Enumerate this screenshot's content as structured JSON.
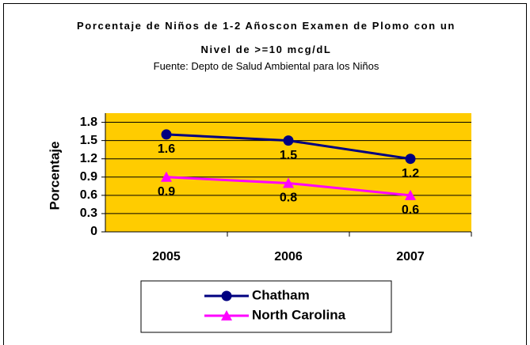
{
  "chart_data": {
    "type": "line",
    "title": "Porcentaje de Niños de 1-2 Añoscon Examen de Plomo con un Nivel de >=10 mcg/dL",
    "subtitle": "Fuente: Depto de Salud Ambiental para los Niños",
    "y_label": "Porcentaje",
    "categories": [
      "2005",
      "2006",
      "2007"
    ],
    "series": [
      {
        "name": "Chatham",
        "color": "#000080",
        "marker": "circle",
        "values": [
          1.6,
          1.5,
          1.2
        ]
      },
      {
        "name": "North Carolina",
        "color": "#ff00ff",
        "marker": "triangle",
        "values": [
          0.9,
          0.8,
          0.6
        ]
      }
    ],
    "ylim": [
      0,
      1.95
    ],
    "yticks": [
      0,
      0.3,
      0.6,
      0.9,
      1.2,
      1.5,
      1.8
    ],
    "grid": true,
    "plot_color": "#ffcc00",
    "legend": "bottom"
  }
}
